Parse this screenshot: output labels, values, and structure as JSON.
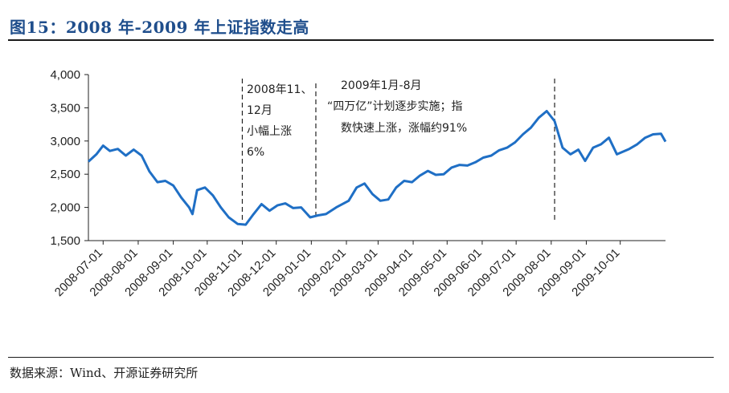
{
  "figure": {
    "title": "图15：2008 年-2009 年上证指数走高",
    "source": "数据来源：Wind、开源证券研究所"
  },
  "chart_data": {
    "type": "line",
    "title": "",
    "xlabel": "",
    "ylabel": "",
    "ylim": [
      1500,
      4000
    ],
    "yticks": [
      1500,
      2000,
      2500,
      3000,
      3500,
      4000
    ],
    "ytick_labels": [
      "1,500",
      "2,000",
      "2,500",
      "3,000",
      "3,500",
      "4,000"
    ],
    "xlim": [
      "2008-06-18",
      "2009-11-10"
    ],
    "xticks": [
      "2008-07-01",
      "2008-08-01",
      "2008-09-01",
      "2008-10-01",
      "2008-11-01",
      "2008-12-01",
      "2009-01-01",
      "2009-02-01",
      "2009-03-01",
      "2009-04-01",
      "2009-05-01",
      "2009-06-01",
      "2009-07-01",
      "2009-08-01",
      "2009-09-01",
      "2009-10-01"
    ],
    "line_color": "#1f6fc5",
    "grid": false,
    "legend": "none",
    "series": [
      {
        "x": [
          "2008-06-18",
          "2008-06-25",
          "2008-07-01",
          "2008-07-07",
          "2008-07-14",
          "2008-07-21",
          "2008-07-28",
          "2008-08-04",
          "2008-08-11",
          "2008-08-18",
          "2008-08-25",
          "2008-09-01",
          "2008-09-08",
          "2008-09-15",
          "2008-09-18",
          "2008-09-22",
          "2008-09-29",
          "2008-10-06",
          "2008-10-13",
          "2008-10-20",
          "2008-10-28",
          "2008-11-04",
          "2008-11-11",
          "2008-11-18",
          "2008-11-25",
          "2008-12-02",
          "2008-12-09",
          "2008-12-16",
          "2008-12-23",
          "2008-12-31",
          "2009-01-07",
          "2009-01-14",
          "2009-01-23",
          "2009-02-03",
          "2009-02-10",
          "2009-02-17",
          "2009-02-24",
          "2009-03-03",
          "2009-03-10",
          "2009-03-17",
          "2009-03-24",
          "2009-03-31",
          "2009-04-07",
          "2009-04-14",
          "2009-04-21",
          "2009-04-28",
          "2009-05-05",
          "2009-05-12",
          "2009-05-19",
          "2009-05-26",
          "2009-06-02",
          "2009-06-09",
          "2009-06-16",
          "2009-06-23",
          "2009-06-30",
          "2009-07-07",
          "2009-07-14",
          "2009-07-21",
          "2009-07-28",
          "2009-08-04",
          "2009-08-11",
          "2009-08-18",
          "2009-08-25",
          "2009-08-31",
          "2009-09-07",
          "2009-09-14",
          "2009-09-21",
          "2009-09-28",
          "2009-10-09",
          "2009-10-16",
          "2009-10-23",
          "2009-10-30",
          "2009-11-06",
          "2009-11-10"
        ],
        "values": [
          2690,
          2800,
          2930,
          2850,
          2880,
          2780,
          2870,
          2780,
          2540,
          2380,
          2400,
          2330,
          2150,
          2000,
          1900,
          2260,
          2300,
          2180,
          2000,
          1850,
          1750,
          1740,
          1900,
          2050,
          1950,
          2030,
          2060,
          1990,
          2000,
          1850,
          1880,
          1900,
          2000,
          2100,
          2300,
          2360,
          2200,
          2100,
          2120,
          2300,
          2400,
          2380,
          2480,
          2550,
          2490,
          2500,
          2600,
          2640,
          2630,
          2680,
          2750,
          2780,
          2860,
          2900,
          2980,
          3100,
          3200,
          3350,
          3450,
          3300,
          2900,
          2800,
          2870,
          2700,
          2900,
          2950,
          3050,
          2800,
          2880,
          2950,
          3050,
          3100,
          3110,
          2990
        ]
      }
    ],
    "annotations": [
      {
        "lines": [
          "2008年11、",
          "12月",
          "小幅上涨",
          "6%"
        ]
      },
      {
        "lines": [
          "2009年1月-8月",
          "“四万亿”计划逐步实施；指",
          "数快速上涨，涨幅约91%"
        ]
      }
    ],
    "reference_lines": [
      "2008-11-01",
      "2009-01-05",
      "2009-08-04"
    ]
  }
}
